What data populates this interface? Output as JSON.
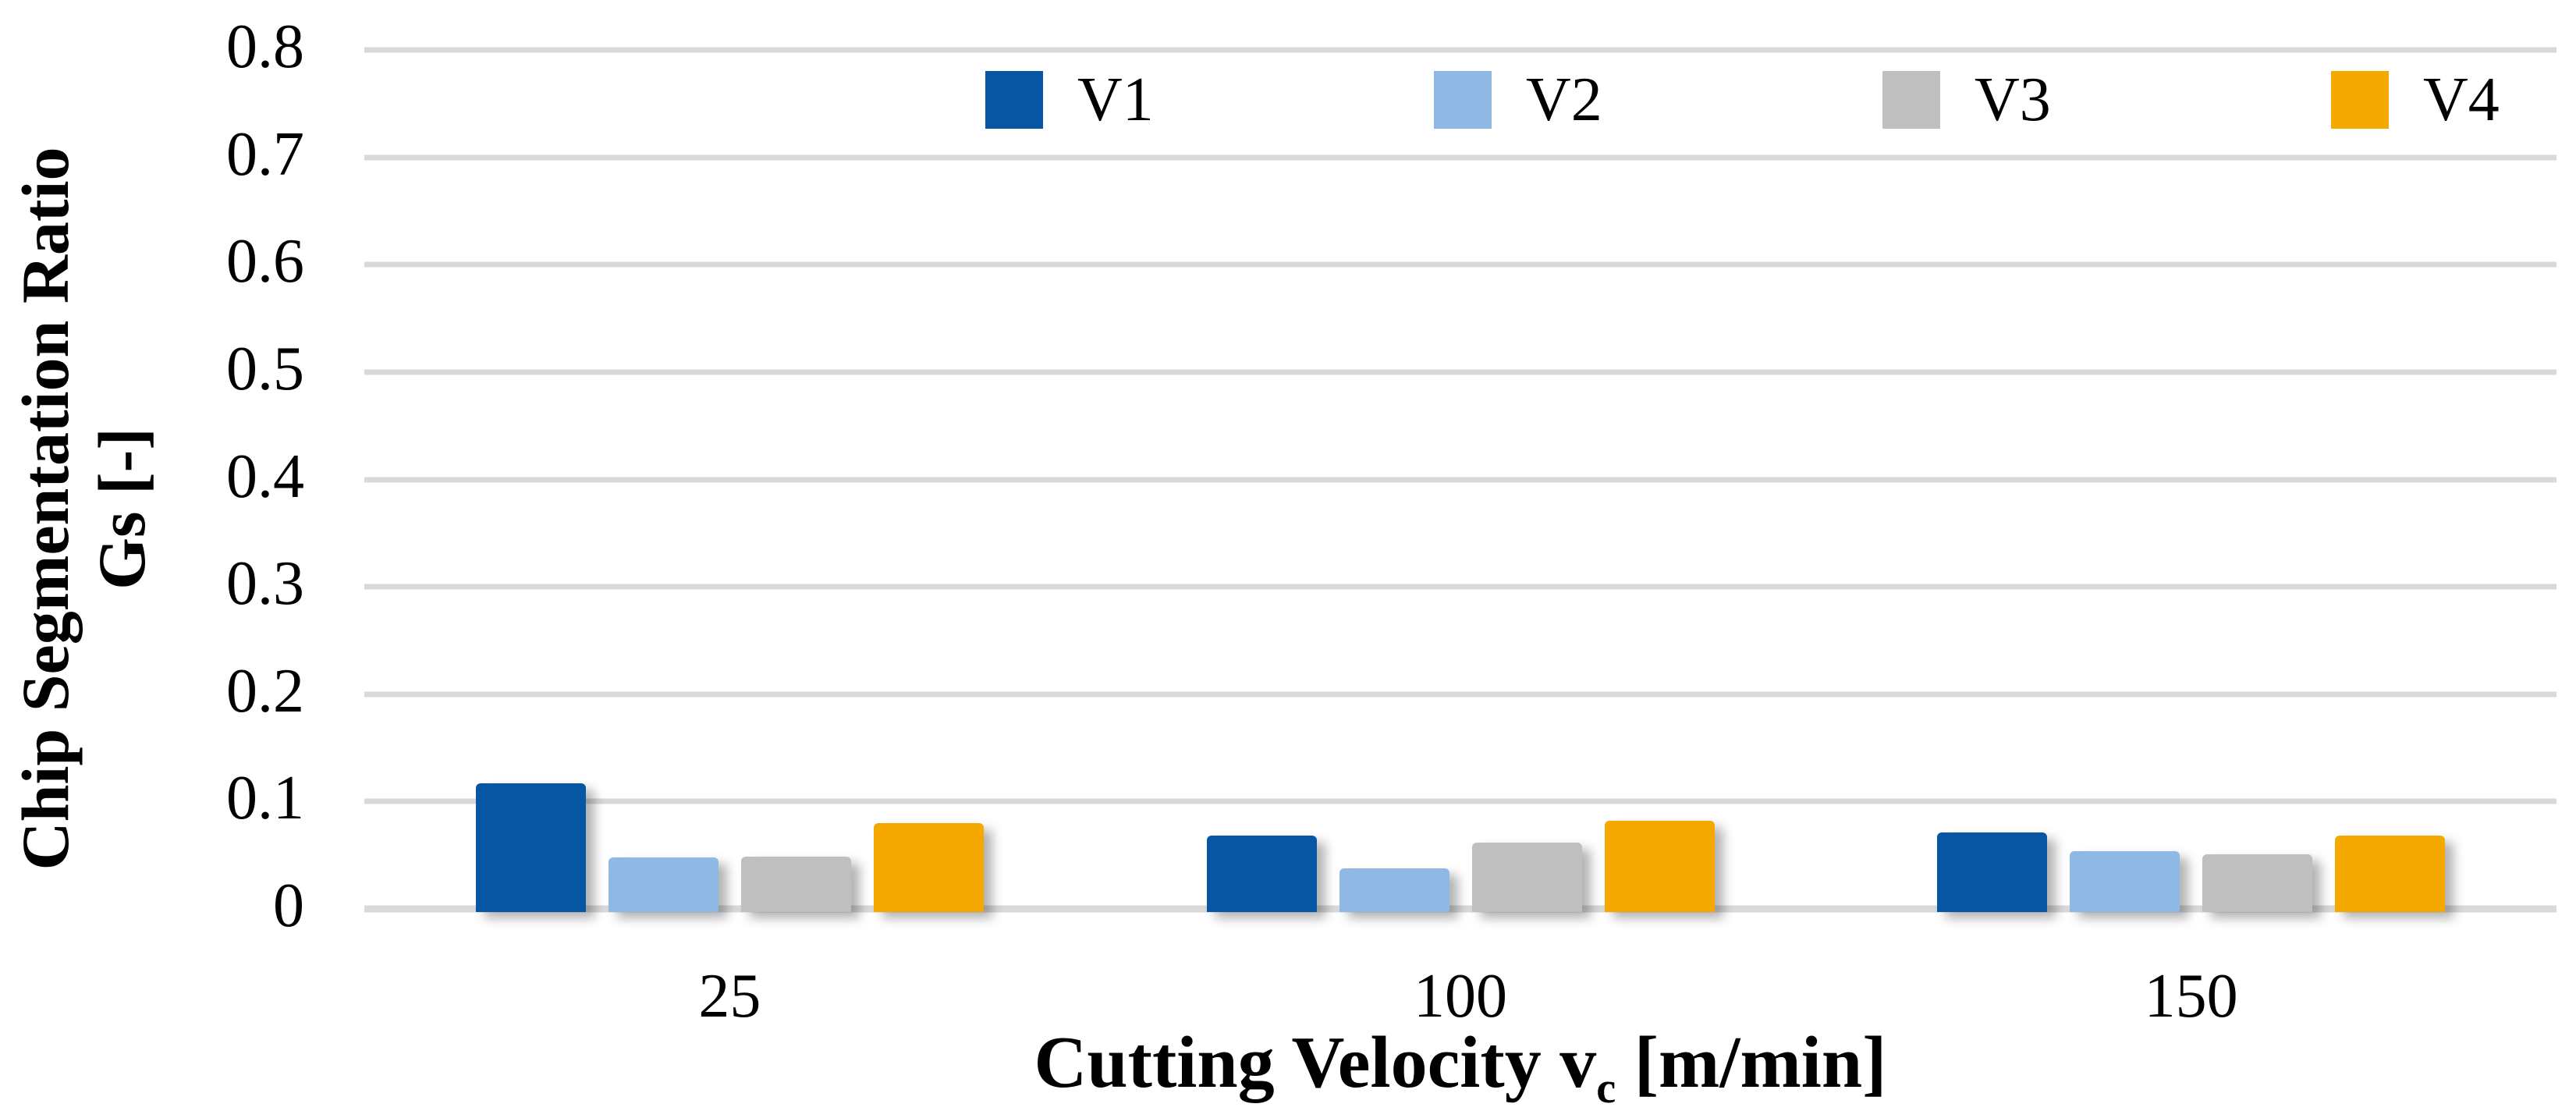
{
  "chart_data": {
    "type": "bar",
    "categories": [
      "25",
      "100",
      "150"
    ],
    "series": [
      {
        "name": "V1",
        "color": "#0656A4",
        "values": [
          0.117,
          0.068,
          0.071
        ]
      },
      {
        "name": "V2",
        "color": "#8FB8E5",
        "values": [
          0.048,
          0.038,
          0.054
        ]
      },
      {
        "name": "V3",
        "color": "#BFBFBF",
        "values": [
          0.049,
          0.062,
          0.051
        ]
      },
      {
        "name": "V4",
        "color": "#F5A800",
        "values": [
          0.08,
          0.082,
          0.068
        ]
      }
    ],
    "ylabel_line1": "Chip Segmentation Ratio",
    "ylabel_line2": "Gs [-]",
    "xlabel_parts": {
      "before_sub": "Cutting Velocity v",
      "subscript": "c",
      "after_sub": " [m/min]"
    },
    "ylim": [
      0,
      0.8
    ],
    "ytick_step": 0.1,
    "yticks": [
      "0",
      "0.1",
      "0.2",
      "0.3",
      "0.4",
      "0.5",
      "0.6",
      "0.7",
      "0.8"
    ],
    "grid": "horizontal",
    "legend_position": "top",
    "gridline_color": "#D9D9D9",
    "text_color": "#000000",
    "background": "#FFFFFF"
  }
}
